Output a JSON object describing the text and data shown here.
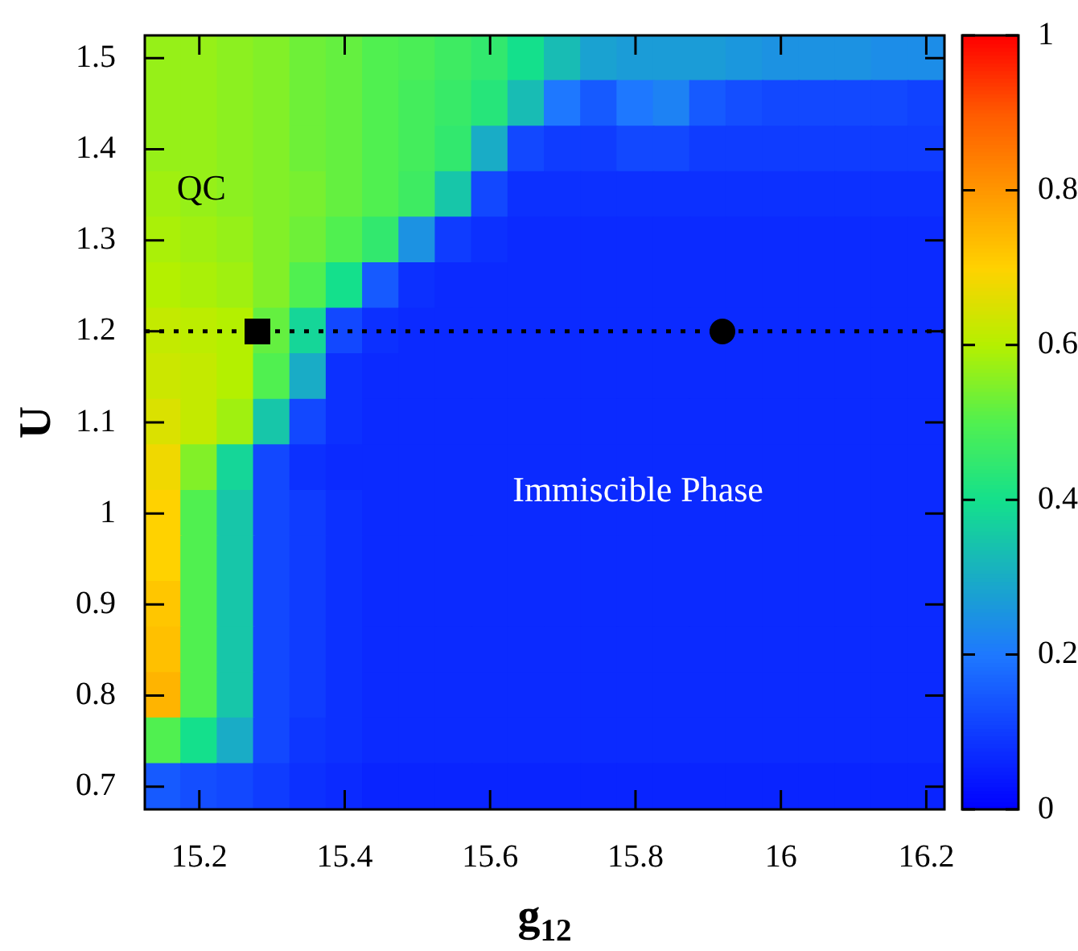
{
  "chart_data": {
    "type": "heatmap",
    "xlabel": "g$_{12}$",
    "ylabel": "U",
    "categories": [
      null,
      "15.2",
      null,
      null,
      null,
      "15.4",
      null,
      null,
      null,
      "15.6",
      null,
      null,
      null,
      "15.8",
      null,
      null,
      null,
      "16",
      null,
      null,
      null,
      "16.2"
    ],
    "y_categories": [
      "1.5",
      null,
      "1.4",
      null,
      "1.3",
      null,
      "1.2",
      null,
      "1.1",
      null,
      "1",
      null,
      "0.9",
      null,
      "0.8",
      null,
      "0.7"
    ],
    "clim": [
      0,
      1
    ],
    "cticks": [
      0,
      0.2,
      0.4,
      0.6,
      0.8,
      1
    ],
    "cells": [
      [
        0.57,
        0.57,
        0.56,
        0.55,
        0.53,
        0.52,
        0.5,
        0.49,
        0.47,
        0.45,
        0.4,
        0.33,
        0.28,
        0.27,
        0.27,
        0.27,
        0.26,
        0.25,
        0.25,
        0.25,
        0.24,
        0.24
      ],
      [
        0.57,
        0.57,
        0.56,
        0.55,
        0.53,
        0.52,
        0.5,
        0.48,
        0.46,
        0.43,
        0.33,
        0.2,
        0.15,
        0.2,
        0.22,
        0.15,
        0.13,
        0.12,
        0.12,
        0.12,
        0.12,
        0.11
      ],
      [
        0.57,
        0.57,
        0.56,
        0.55,
        0.53,
        0.52,
        0.5,
        0.48,
        0.45,
        0.3,
        0.12,
        0.1,
        0.1,
        0.12,
        0.12,
        0.1,
        0.1,
        0.1,
        0.1,
        0.1,
        0.1,
        0.1
      ],
      [
        0.58,
        0.57,
        0.56,
        0.55,
        0.54,
        0.52,
        0.5,
        0.47,
        0.35,
        0.12,
        0.08,
        0.08,
        0.08,
        0.08,
        0.08,
        0.08,
        0.08,
        0.08,
        0.08,
        0.08,
        0.08,
        0.08
      ],
      [
        0.59,
        0.58,
        0.57,
        0.55,
        0.53,
        0.5,
        0.45,
        0.25,
        0.1,
        0.08,
        0.07,
        0.07,
        0.07,
        0.07,
        0.07,
        0.07,
        0.07,
        0.07,
        0.07,
        0.07,
        0.07,
        0.07
      ],
      [
        0.6,
        0.59,
        0.58,
        0.55,
        0.5,
        0.4,
        0.15,
        0.08,
        0.07,
        0.07,
        0.07,
        0.07,
        0.07,
        0.07,
        0.07,
        0.07,
        0.07,
        0.07,
        0.07,
        0.07,
        0.07,
        0.07
      ],
      [
        0.62,
        0.61,
        0.6,
        0.52,
        0.38,
        0.12,
        0.08,
        0.07,
        0.07,
        0.07,
        0.07,
        0.07,
        0.07,
        0.07,
        0.07,
        0.07,
        0.07,
        0.07,
        0.07,
        0.07,
        0.07,
        0.07
      ],
      [
        0.63,
        0.62,
        0.6,
        0.5,
        0.3,
        0.08,
        0.07,
        0.07,
        0.07,
        0.07,
        0.07,
        0.07,
        0.07,
        0.07,
        0.07,
        0.07,
        0.07,
        0.07,
        0.07,
        0.07,
        0.07,
        0.07
      ],
      [
        0.65,
        0.62,
        0.58,
        0.35,
        0.12,
        0.08,
        0.07,
        0.07,
        0.07,
        0.07,
        0.07,
        0.07,
        0.07,
        0.07,
        0.07,
        0.07,
        0.07,
        0.07,
        0.07,
        0.07,
        0.07,
        0.07
      ],
      [
        0.68,
        0.55,
        0.38,
        0.12,
        0.08,
        0.07,
        0.07,
        0.07,
        0.07,
        0.07,
        0.07,
        0.07,
        0.07,
        0.07,
        0.07,
        0.07,
        0.07,
        0.07,
        0.07,
        0.07,
        0.07,
        0.07
      ],
      [
        0.7,
        0.5,
        0.35,
        0.12,
        0.1,
        0.08,
        0.07,
        0.07,
        0.07,
        0.07,
        0.07,
        0.07,
        0.07,
        0.07,
        0.07,
        0.07,
        0.07,
        0.07,
        0.07,
        0.07,
        0.07,
        0.07
      ],
      [
        0.7,
        0.5,
        0.35,
        0.12,
        0.1,
        0.08,
        0.07,
        0.07,
        0.07,
        0.07,
        0.07,
        0.07,
        0.07,
        0.07,
        0.07,
        0.07,
        0.07,
        0.07,
        0.07,
        0.07,
        0.07,
        0.07
      ],
      [
        0.72,
        0.5,
        0.35,
        0.12,
        0.1,
        0.08,
        0.07,
        0.07,
        0.07,
        0.07,
        0.07,
        0.07,
        0.07,
        0.07,
        0.07,
        0.07,
        0.07,
        0.07,
        0.07,
        0.07,
        0.07,
        0.07
      ],
      [
        0.73,
        0.5,
        0.35,
        0.12,
        0.1,
        0.08,
        0.07,
        0.07,
        0.07,
        0.07,
        0.07,
        0.07,
        0.07,
        0.07,
        0.07,
        0.07,
        0.07,
        0.07,
        0.07,
        0.07,
        0.07,
        0.07
      ],
      [
        0.75,
        0.5,
        0.35,
        0.12,
        0.1,
        0.08,
        0.07,
        0.07,
        0.07,
        0.07,
        0.07,
        0.07,
        0.07,
        0.07,
        0.07,
        0.07,
        0.07,
        0.07,
        0.07,
        0.07,
        0.07,
        0.07
      ],
      [
        0.5,
        0.4,
        0.3,
        0.12,
        0.09,
        0.08,
        0.07,
        0.07,
        0.07,
        0.07,
        0.07,
        0.07,
        0.07,
        0.07,
        0.07,
        0.07,
        0.07,
        0.07,
        0.07,
        0.07,
        0.07,
        0.07
      ],
      [
        0.15,
        0.13,
        0.12,
        0.1,
        0.08,
        0.07,
        0.06,
        0.06,
        0.06,
        0.06,
        0.06,
        0.06,
        0.06,
        0.06,
        0.06,
        0.06,
        0.06,
        0.06,
        0.06,
        0.06,
        0.06,
        0.06
      ]
    ],
    "ref_lines": [
      {
        "axis": "y",
        "value": "1.2",
        "line_style": "dotted",
        "color": "#000000"
      }
    ],
    "annotations": [
      "QC",
      "Immiscible Phase"
    ]
  }
}
